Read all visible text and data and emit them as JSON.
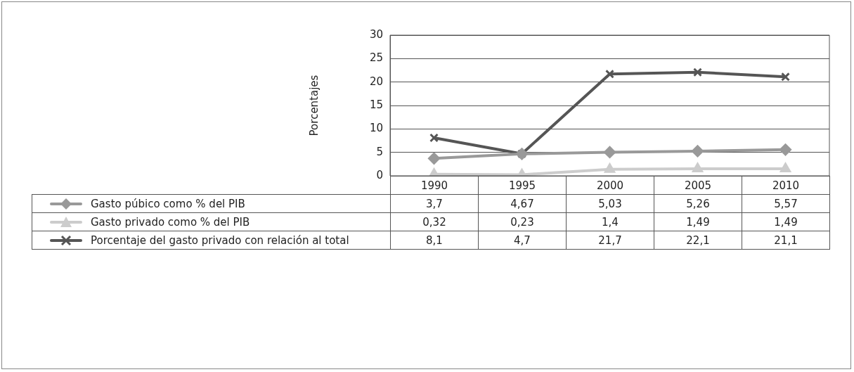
{
  "chart_data": {
    "type": "line",
    "ylabel": "Porcentajes",
    "categories": [
      "1990",
      "1995",
      "2000",
      "2005",
      "2010"
    ],
    "series": [
      {
        "name": "Gasto púbico como % del PIB",
        "color": "#999999",
        "marker": "diamond",
        "values": [
          3.7,
          4.67,
          5.03,
          5.26,
          5.57
        ],
        "value_labels": [
          "3,7",
          "4,67",
          "5,03",
          "5,26",
          "5,57"
        ]
      },
      {
        "name": "Gasto privado como % del PIB",
        "color": "#cccccc",
        "marker": "triangle",
        "values": [
          0.32,
          0.23,
          1.4,
          1.49,
          1.49
        ],
        "value_labels": [
          "0,32",
          "0,23",
          "1,4",
          "1,49",
          "1,49"
        ]
      },
      {
        "name": "Porcentaje del gasto privado con relación al total",
        "color": "#555555",
        "marker": "cross",
        "values": [
          8.1,
          4.7,
          21.7,
          22.1,
          21.1
        ],
        "value_labels": [
          "8,1",
          "4,7",
          "21,7",
          "22,1",
          "21,1"
        ]
      }
    ],
    "ylim": [
      0,
      30
    ],
    "yticks": [
      0,
      5,
      10,
      15,
      20,
      25,
      30
    ],
    "grid": "y",
    "legend": "bottom"
  }
}
